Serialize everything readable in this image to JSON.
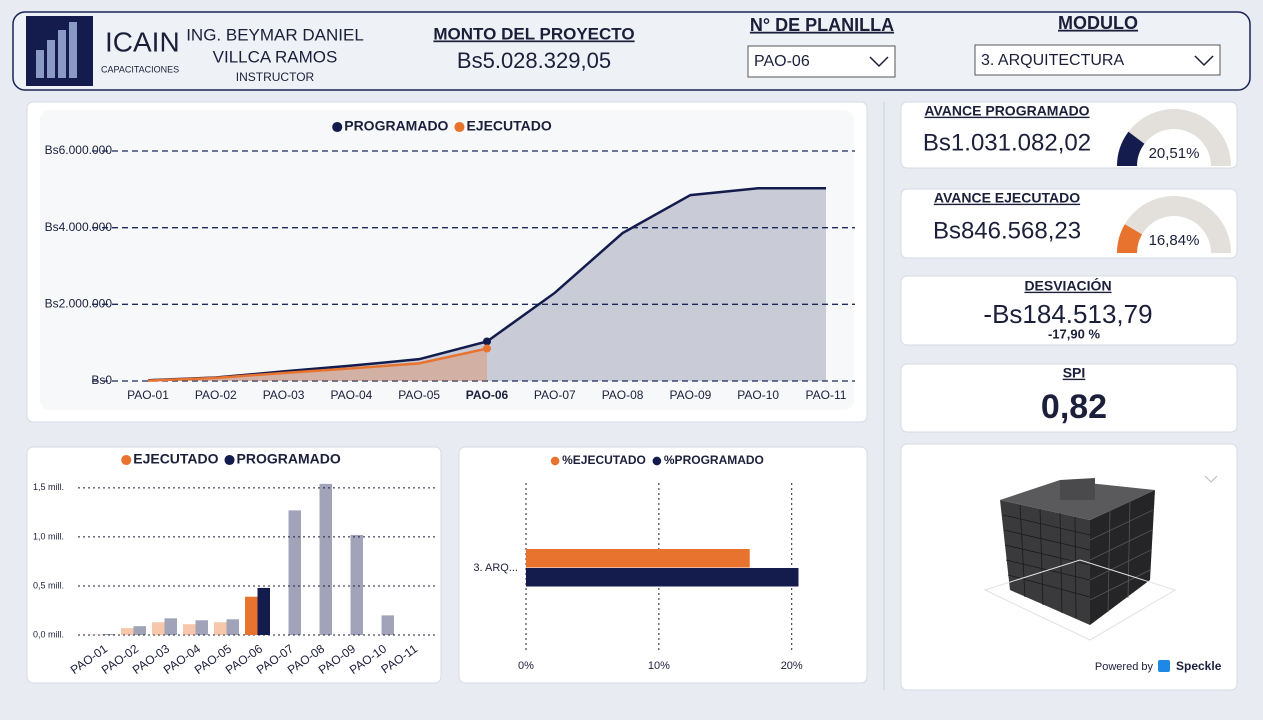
{
  "header": {
    "logo_title": "ICAIN",
    "logo_subtitle": "CAPACITACIONES",
    "instructor_name_lines": [
      "ING. BEYMAR DANIEL",
      "VILLCA RAMOS"
    ],
    "instructor_role": "INSTRUCTOR",
    "amount_label": "MONTO DEL PROYECTO",
    "amount": "Bs5.028.329,05"
  },
  "filters": [
    {
      "label": "N° DE PLANILLA",
      "value": "PAO-06"
    },
    {
      "label": "MODULO",
      "value": "3. ARQUITECTURA"
    }
  ],
  "chart_data": [
    {
      "type": "line",
      "categories": [
        "PAO-01",
        "PAO-02",
        "PAO-03",
        "PAO-04",
        "PAO-05",
        "PAO-06",
        "PAO-07",
        "PAO-08",
        "PAO-09",
        "PAO-10",
        "PAO-11"
      ],
      "series": [
        {
          "name": "PROGRAMADO",
          "color": "#141b4d",
          "values": [
            20000,
            90000,
            250000,
            400000,
            570000,
            1031082.02,
            2300000,
            3860000,
            4850000,
            5028329.05,
            5028329.05
          ]
        },
        {
          "name": "EJECUTADO",
          "color": "#e8732e",
          "values": [
            10000,
            80000,
            210000,
            330000,
            460000,
            846568.23,
            null,
            null,
            null,
            null,
            null
          ]
        }
      ],
      "ylim": [
        0,
        6000000
      ],
      "yticks": [
        {
          "value": 0,
          "label": "Bs0"
        },
        {
          "value": 2000000,
          "label": "Bs2.000.000"
        },
        {
          "value": 4000000,
          "label": "Bs4.000.000"
        },
        {
          "value": 6000000,
          "label": "Bs6.000.000"
        }
      ],
      "grid": true
    },
    {
      "type": "bar",
      "categories": [
        "PAO-01",
        "PAO-02",
        "PAO-03",
        "PAO-04",
        "PAO-05",
        "PAO-06",
        "PAO-07",
        "PAO-08",
        "PAO-09",
        "PAO-10",
        "PAO-11"
      ],
      "series": [
        {
          "name": "EJECUTADO",
          "color": "#e8732e",
          "values": [
            5000,
            70000,
            130000,
            110000,
            130000,
            390000,
            null,
            null,
            null,
            null,
            null
          ]
        },
        {
          "name": "PROGRAMADO",
          "color": "#141b4d",
          "values": [
            10000,
            90000,
            170000,
            150000,
            160000,
            480000,
            1270000,
            1540000,
            1020000,
            200000,
            null
          ]
        }
      ],
      "ylim": [
        0,
        1600000
      ],
      "yticks": [
        {
          "value": 0,
          "label": "0,0 mill."
        },
        {
          "value": 500000,
          "label": "0,5 mill."
        },
        {
          "value": 1000000,
          "label": "1,0 mill."
        },
        {
          "value": 1500000,
          "label": "1,5 mill."
        }
      ],
      "grid": true
    },
    {
      "type": "hbar",
      "categories": [
        "3. ARQ..."
      ],
      "series": [
        {
          "name": "%EJECUTADO",
          "color": "#e8732e",
          "values": [
            16.84
          ]
        },
        {
          "name": "%PROGRAMADO",
          "color": "#141b4d",
          "values": [
            20.51
          ]
        }
      ],
      "xlim": [
        0,
        21
      ],
      "xticks": [
        {
          "value": 0,
          "label": "0%"
        },
        {
          "value": 10,
          "label": "10%"
        },
        {
          "value": 20,
          "label": "20%"
        }
      ],
      "grid": true
    }
  ],
  "kpis": [
    {
      "title": "AVANCE PROGRAMADO",
      "value": "Bs1.031.082,02",
      "gauge": {
        "value": 20.51,
        "label": "20,51%",
        "lim": [
          0,
          100
        ],
        "color": "#141b4d"
      }
    },
    {
      "title": "AVANCE EJECUTADO",
      "value": "Bs846.568,23",
      "gauge": {
        "value": 16.84,
        "label": "16,84%",
        "lim": [
          0,
          100
        ],
        "color": "#e8732e"
      }
    },
    {
      "title": "DESVIACIÓN",
      "value": "-Bs184.513,79",
      "detail": "-17,90 %"
    },
    {
      "title": "SPI",
      "value": "0,82"
    }
  ],
  "viewer": {
    "powered_by": "Powered by",
    "brand": "Speckle"
  }
}
